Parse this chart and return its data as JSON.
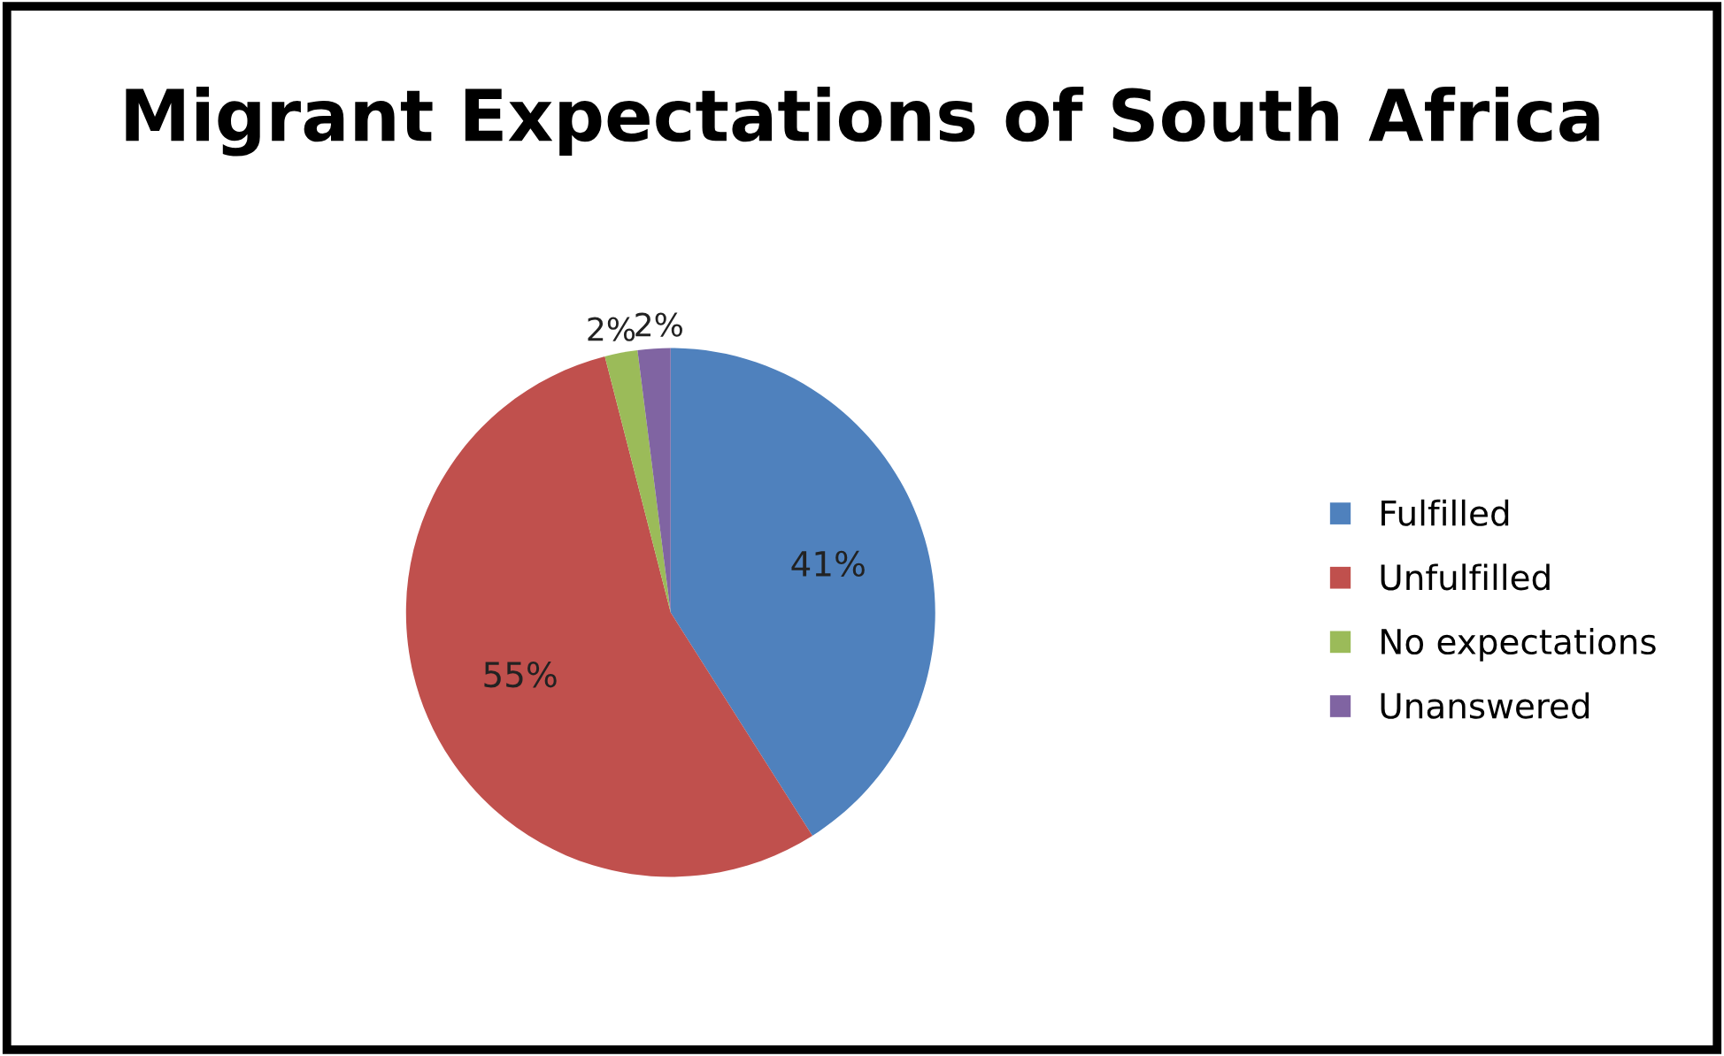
{
  "chart_data": {
    "type": "pie",
    "title": "Migrant Expectations of South Africa",
    "categories": [
      "Fulfilled",
      "Unfulfilled",
      "No expectations",
      "Unanswered"
    ],
    "values": [
      41,
      55,
      2,
      2
    ],
    "colors": [
      "#4f81bd",
      "#c0504d",
      "#9bbb59",
      "#8064a2"
    ],
    "value_labels": [
      "41%",
      "55%",
      "2%",
      "2%"
    ],
    "legend": "right"
  }
}
